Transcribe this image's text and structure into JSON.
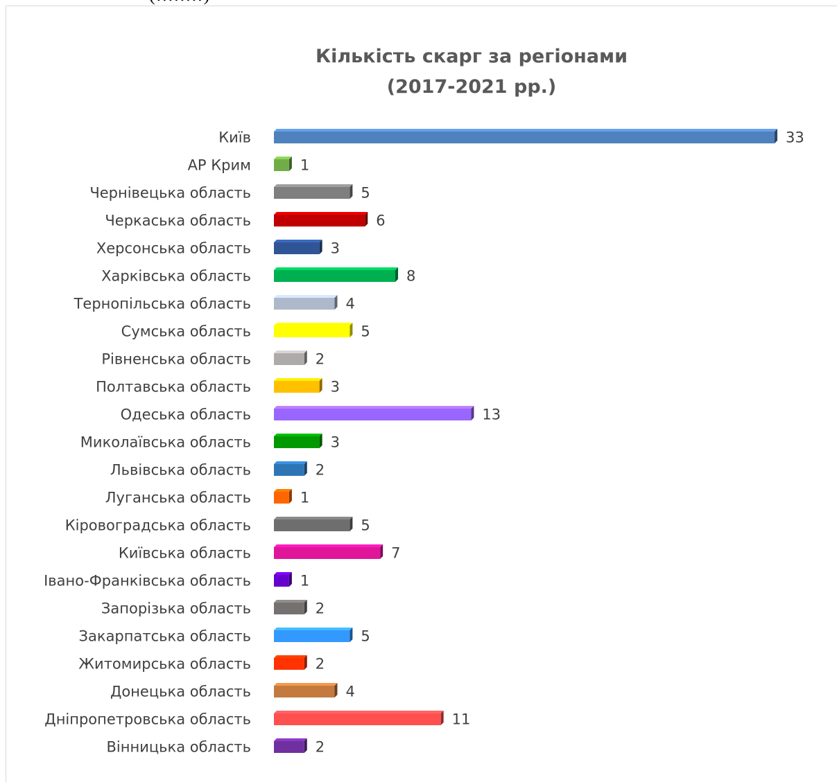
{
  "page": {
    "top_caption": "(........)"
  },
  "chart_data": {
    "type": "bar",
    "orientation": "horizontal",
    "title": "Кількість скарг за регіонами (2017-2021 рр.)",
    "title_lines": [
      "Кількість скарг за регіонами",
      "(2017-2021 рр.)"
    ],
    "xlabel": "",
    "ylabel": "",
    "xlim": [
      0,
      33
    ],
    "grid": false,
    "legend": "none",
    "data_labels": true,
    "categories": [
      "Київ",
      "АР Крим",
      "Чернівецька область",
      "Черкаська область",
      "Херсонська область",
      "Харківська область",
      "Тернопільська область",
      "Сумська область",
      "Рівненська область",
      "Полтавська область",
      "Одеська область",
      "Миколаївська область",
      "Львівська область",
      "Луганська область",
      "Кіровоградська область",
      "Київська область",
      "Івано-Франківська область",
      "Запорізька область",
      "Закарпатська область",
      "Житомирська область",
      "Донецька область",
      "Дніпропетровська область",
      "Вінницька область"
    ],
    "values": [
      33,
      1,
      5,
      6,
      3,
      8,
      4,
      5,
      2,
      3,
      13,
      3,
      2,
      1,
      5,
      7,
      1,
      2,
      5,
      2,
      4,
      11,
      2
    ],
    "colors": [
      "#4f81bd",
      "#70ad47",
      "#7f7f7f",
      "#c00000",
      "#2f5597",
      "#00b050",
      "#adb9ca",
      "#ffff00",
      "#aeaaaa",
      "#ffc000",
      "#9966ff",
      "#009900",
      "#2e75b6",
      "#ff6600",
      "#6e6e6e",
      "#e0169a",
      "#6600cc",
      "#767171",
      "#3399ff",
      "#ff3300",
      "#c47a3e",
      "#ff5050",
      "#7030a0"
    ]
  }
}
